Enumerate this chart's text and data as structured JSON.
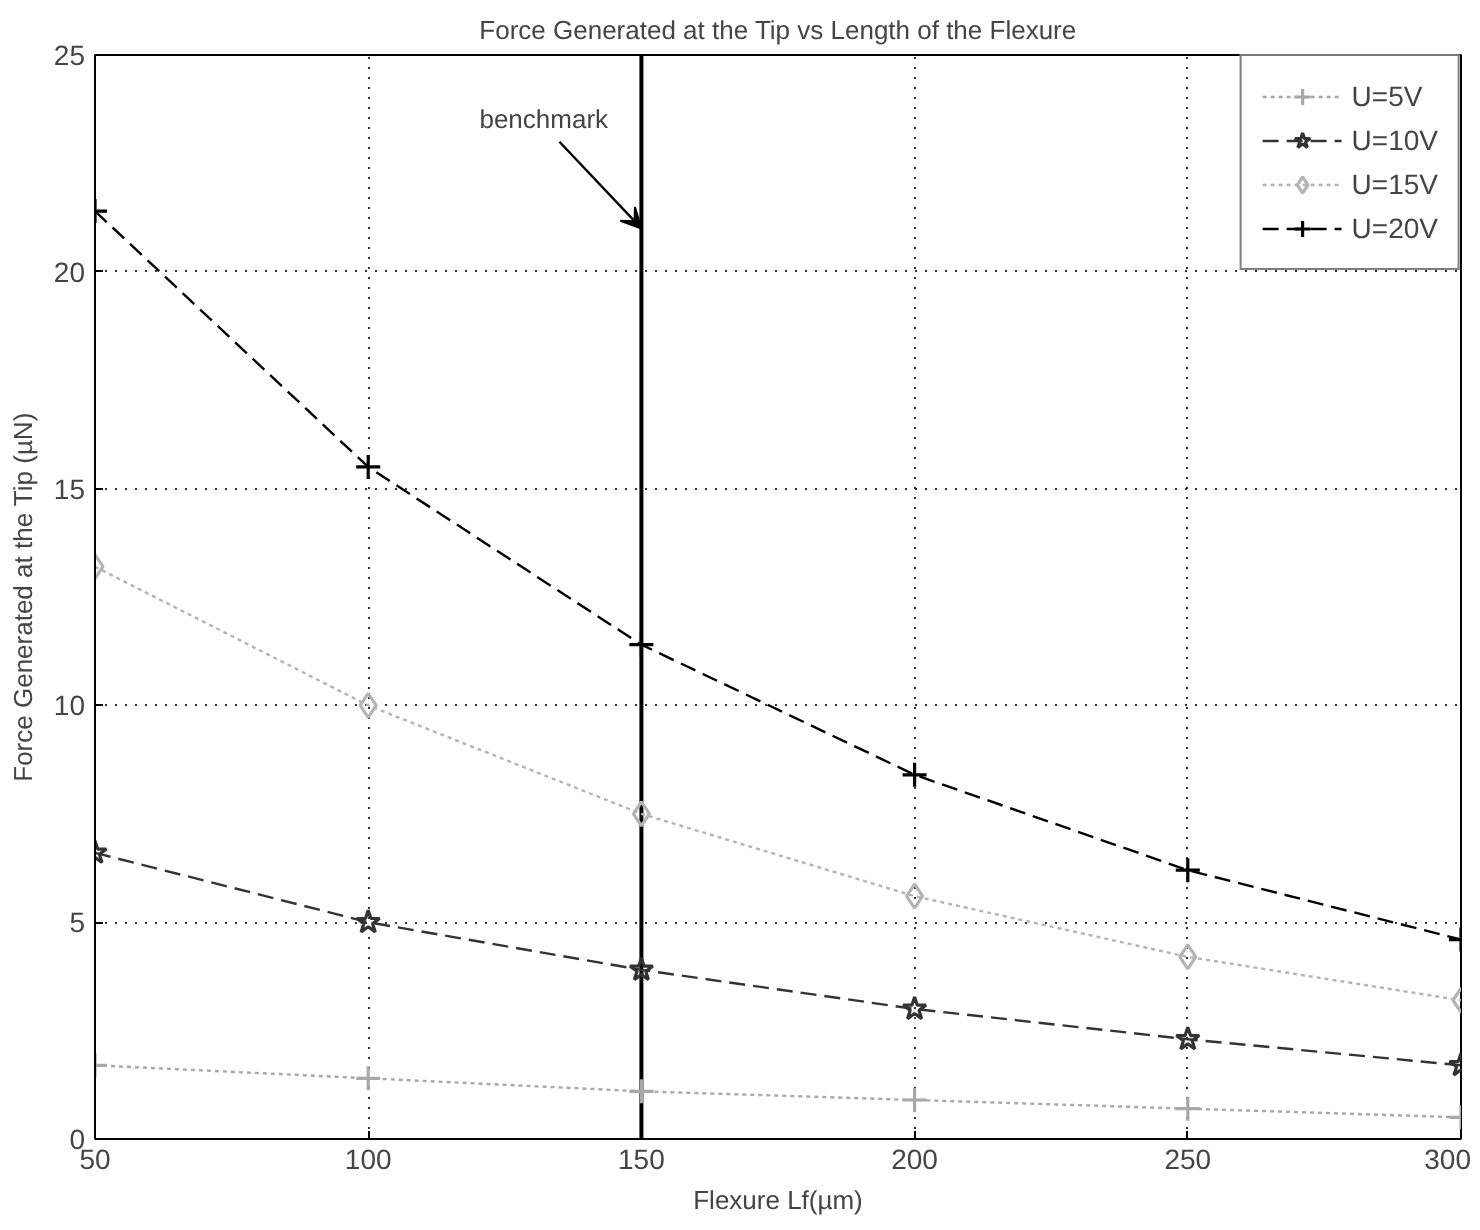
{
  "chart_data": {
    "type": "line",
    "title": "Force Generated at the Tip vs Length of the Flexure",
    "xlabel": "Flexure Lf(µm)",
    "ylabel": "Force Generated at the Tip (µN)",
    "x": [
      50,
      100,
      150,
      200,
      250,
      300
    ],
    "series": [
      {
        "name": "U=5V",
        "color": "#a8a8a8",
        "values": [
          1.7,
          1.4,
          1.1,
          0.9,
          0.7,
          0.5
        ],
        "marker": "cross",
        "line_style": "dotted"
      },
      {
        "name": "U=10V",
        "color": "#333333",
        "values": [
          6.6,
          5.0,
          3.9,
          3.0,
          2.3,
          1.7
        ],
        "marker": "star",
        "line_style": "dashed"
      },
      {
        "name": "U=15V",
        "color": "#b4b4b4",
        "values": [
          13.2,
          10.0,
          7.5,
          5.6,
          4.2,
          3.2
        ],
        "marker": "diamond",
        "line_style": "dotted"
      },
      {
        "name": "U=20V",
        "color": "#000000",
        "values": [
          21.4,
          15.5,
          11.4,
          8.4,
          6.2,
          4.6
        ],
        "marker": "cross",
        "line_style": "dashed"
      }
    ],
    "xlim": [
      50,
      300
    ],
    "ylim": [
      0,
      25
    ],
    "xticks": [
      50,
      100,
      150,
      200,
      250,
      300
    ],
    "yticks": [
      0,
      5,
      10,
      15,
      20,
      25
    ],
    "grid": true,
    "legend": "top right",
    "ref_lines": [
      {
        "axis": "x",
        "value": 150,
        "color": "#000000"
      }
    ],
    "annotations": [
      {
        "text": "benchmark",
        "x": 150,
        "y": 21
      }
    ]
  }
}
